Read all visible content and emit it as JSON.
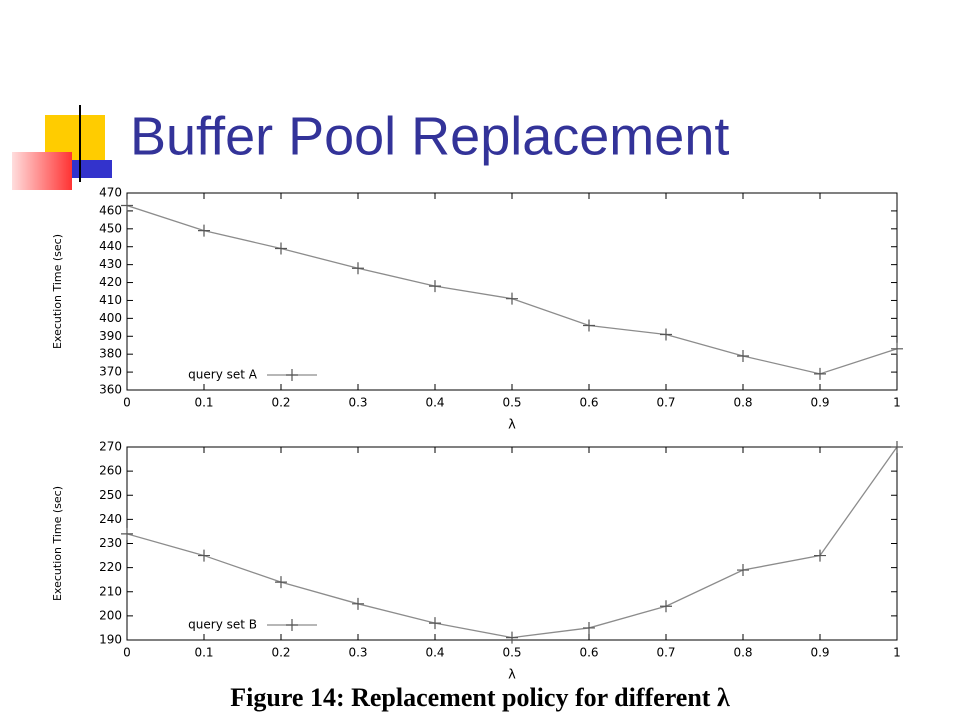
{
  "title": "Buffer Pool Replacement",
  "caption": "Figure 14: Replacement policy for different λ",
  "chart_data": [
    {
      "type": "line",
      "xlabel": "λ",
      "ylabel": "Execution Time (sec)",
      "x": [
        0,
        0.1,
        0.2,
        0.3,
        0.4,
        0.5,
        0.6,
        0.7,
        0.8,
        0.9,
        1
      ],
      "series": [
        {
          "name": "query set A",
          "color": "#8c8c8c",
          "values": [
            463,
            449,
            439,
            428,
            418,
            411,
            396,
            391,
            379,
            369,
            383
          ]
        }
      ],
      "xlim": [
        0,
        1
      ],
      "xticks": [
        0,
        0.1,
        0.2,
        0.3,
        0.4,
        0.5,
        0.6,
        0.7,
        0.8,
        0.9,
        1
      ],
      "ylim": [
        360,
        470
      ],
      "yticks": [
        360,
        370,
        380,
        390,
        400,
        410,
        420,
        430,
        440,
        450,
        460,
        470
      ],
      "legend": "lower left"
    },
    {
      "type": "line",
      "xlabel": "λ",
      "ylabel": "Execution Time (sec)",
      "x": [
        0,
        0.1,
        0.2,
        0.3,
        0.4,
        0.5,
        0.6,
        0.7,
        0.8,
        0.9,
        1
      ],
      "series": [
        {
          "name": "query set B",
          "color": "#8c8c8c",
          "values": [
            234,
            225,
            214,
            205,
            197,
            191,
            195,
            204,
            219,
            225,
            270
          ]
        }
      ],
      "xlim": [
        0,
        1
      ],
      "xticks": [
        0,
        0.1,
        0.2,
        0.3,
        0.4,
        0.5,
        0.6,
        0.7,
        0.8,
        0.9,
        1
      ],
      "ylim": [
        190,
        270
      ],
      "yticks": [
        190,
        200,
        210,
        220,
        230,
        240,
        250,
        260,
        270
      ],
      "legend": "lower left"
    }
  ]
}
